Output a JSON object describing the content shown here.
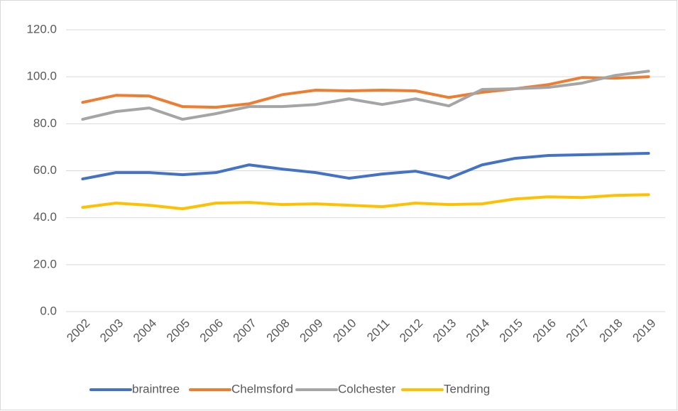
{
  "chart_data": {
    "type": "line",
    "categories": [
      "2002",
      "2003",
      "2004",
      "2005",
      "2006",
      "2007",
      "2008",
      "2009",
      "2010",
      "2011",
      "2012",
      "2013",
      "2014",
      "2015",
      "2016",
      "2017",
      "2018",
      "2019"
    ],
    "series": [
      {
        "name": "braintree",
        "color": "#4472c4",
        "values": [
          56.5,
          59.2,
          59.2,
          58.3,
          59.2,
          62.5,
          60.7,
          59.2,
          56.8,
          58.6,
          59.8,
          56.8,
          62.5,
          65.3,
          66.5,
          66.8,
          67.1,
          67.4
        ]
      },
      {
        "name": "Chelmsford",
        "color": "#ed7d31",
        "values": [
          89.1,
          92.1,
          91.8,
          87.3,
          87.0,
          88.5,
          92.4,
          94.3,
          94.0,
          94.3,
          94.0,
          91.2,
          93.4,
          94.9,
          96.7,
          99.7,
          99.4,
          100.0
        ]
      },
      {
        "name": "Colchester",
        "color": "#a5a5a5",
        "values": [
          81.9,
          85.2,
          86.7,
          81.9,
          84.3,
          87.3,
          87.3,
          88.2,
          90.6,
          88.2,
          90.6,
          87.6,
          94.6,
          94.9,
          95.5,
          97.3,
          100.6,
          102.4
        ]
      },
      {
        "name": "Tendring",
        "color": "#ffc000",
        "values": [
          44.4,
          46.2,
          45.3,
          43.8,
          46.2,
          46.5,
          45.6,
          45.9,
          45.3,
          44.7,
          46.2,
          45.6,
          45.9,
          48.0,
          48.9,
          48.6,
          49.5,
          49.8
        ]
      }
    ],
    "ylim": [
      0,
      120
    ],
    "yticks": [
      {
        "value": 0,
        "label": "0.0"
      },
      {
        "value": 20,
        "label": "20.0"
      },
      {
        "value": 40,
        "label": "40.0"
      },
      {
        "value": 60,
        "label": "60.0"
      },
      {
        "value": 80,
        "label": "80.0"
      },
      {
        "value": 100,
        "label": "100.0"
      },
      {
        "value": 120,
        "label": "120.0"
      }
    ],
    "grid": true,
    "legend": "bottom"
  }
}
